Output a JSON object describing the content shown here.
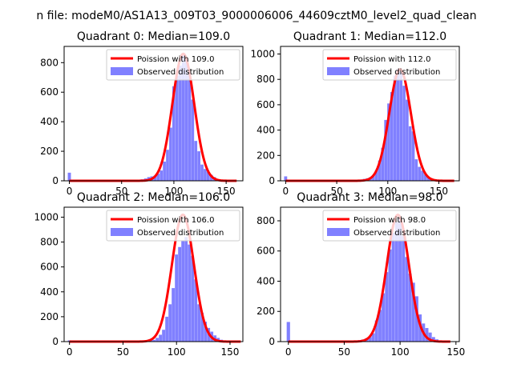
{
  "figure_title": "n file: modeM0/AS1A13_009T03_9000006006_44609cztM0_level2_quad_clean",
  "colors": {
    "fit": "#ff0000",
    "observed": "#8080ff",
    "axes": "#000000"
  },
  "chart_data": [
    {
      "type": "bar",
      "title": "Quadrant 0: Median=109.0",
      "median": 109.0,
      "xlim": [
        -5,
        166
      ],
      "ylim": [
        0,
        910
      ],
      "xticks": [
        0,
        50,
        100,
        150
      ],
      "yticks": [
        0,
        200,
        400,
        600,
        800
      ],
      "legend": [
        "Poission with 109.0",
        "Observed distribution"
      ],
      "legend_loc": "upper right",
      "outlier_bins": [
        {
          "x": 0,
          "y": 55
        }
      ],
      "observed": [
        [
          64,
          3
        ],
        [
          67,
          6
        ],
        [
          70,
          10
        ],
        [
          73,
          16
        ],
        [
          76,
          25
        ],
        [
          79,
          30
        ],
        [
          82,
          35
        ],
        [
          85,
          48
        ],
        [
          88,
          70
        ],
        [
          91,
          130
        ],
        [
          94,
          210
        ],
        [
          97,
          360
        ],
        [
          100,
          640
        ],
        [
          103,
          710
        ],
        [
          106,
          780
        ],
        [
          109,
          860
        ],
        [
          112,
          830
        ],
        [
          115,
          720
        ],
        [
          118,
          550
        ],
        [
          121,
          270
        ],
        [
          124,
          200
        ],
        [
          127,
          110
        ],
        [
          130,
          80
        ],
        [
          133,
          60
        ],
        [
          136,
          40
        ],
        [
          139,
          25
        ],
        [
          142,
          12
        ],
        [
          145,
          6
        ],
        [
          148,
          3
        ]
      ],
      "fit_sigma": 10.44,
      "fit_peak": 860,
      "fit_range": [
        0,
        160
      ]
    },
    {
      "type": "bar",
      "title": "Quadrant 1: Median=112.0",
      "median": 112.0,
      "xlim": [
        -5,
        170
      ],
      "ylim": [
        0,
        1060
      ],
      "xticks": [
        0,
        50,
        100,
        150
      ],
      "yticks": [
        0,
        200,
        400,
        600,
        800,
        1000
      ],
      "legend": [
        "Poission with 112.0",
        "Observed distribution"
      ],
      "legend_loc": "upper right",
      "outlier_bins": [
        {
          "x": 0,
          "y": 35
        }
      ],
      "observed": [
        [
          68,
          4
        ],
        [
          71,
          8
        ],
        [
          74,
          10
        ],
        [
          77,
          15
        ],
        [
          80,
          20
        ],
        [
          83,
          28
        ],
        [
          86,
          45
        ],
        [
          89,
          85
        ],
        [
          92,
          160
        ],
        [
          95,
          260
        ],
        [
          98,
          480
        ],
        [
          101,
          610
        ],
        [
          104,
          700
        ],
        [
          107,
          830
        ],
        [
          110,
          880
        ],
        [
          113,
          860
        ],
        [
          116,
          750
        ],
        [
          119,
          640
        ],
        [
          122,
          430
        ],
        [
          125,
          390
        ],
        [
          128,
          170
        ],
        [
          131,
          110
        ],
        [
          134,
          80
        ],
        [
          137,
          50
        ],
        [
          140,
          30
        ],
        [
          143,
          18
        ],
        [
          146,
          10
        ],
        [
          149,
          5
        ]
      ],
      "fit_sigma": 10.58,
      "fit_peak": 880,
      "fit_range": [
        0,
        165
      ]
    },
    {
      "type": "bar",
      "title": "Quadrant 2: Median=106.0",
      "median": 106.0,
      "xlim": [
        -5,
        162
      ],
      "ylim": [
        0,
        1080
      ],
      "xticks": [
        0,
        50,
        100,
        150
      ],
      "yticks": [
        0,
        200,
        400,
        600,
        800,
        1000
      ],
      "legend": [
        "Poission with 106.0",
        "Observed distribution"
      ],
      "legend_loc": "upper right",
      "outlier_bins": [
        {
          "x": 0,
          "y": 10
        }
      ],
      "observed": [
        [
          70,
          4
        ],
        [
          73,
          6
        ],
        [
          76,
          10
        ],
        [
          79,
          14
        ],
        [
          82,
          30
        ],
        [
          85,
          55
        ],
        [
          88,
          95
        ],
        [
          91,
          200
        ],
        [
          94,
          300
        ],
        [
          97,
          430
        ],
        [
          100,
          700
        ],
        [
          103,
          760
        ],
        [
          106,
          810
        ],
        [
          109,
          840
        ],
        [
          112,
          780
        ],
        [
          115,
          690
        ],
        [
          118,
          500
        ],
        [
          121,
          300
        ],
        [
          124,
          230
        ],
        [
          127,
          160
        ],
        [
          130,
          110
        ],
        [
          133,
          80
        ],
        [
          136,
          50
        ],
        [
          139,
          30
        ],
        [
          142,
          15
        ],
        [
          145,
          8
        ],
        [
          148,
          4
        ]
      ],
      "fit_sigma": 10.3,
      "fit_peak": 1020,
      "fit_range": [
        0,
        160
      ]
    },
    {
      "type": "bar",
      "title": "Quadrant 3: Median=98.0",
      "median": 98.0,
      "xlim": [
        -7,
        153
      ],
      "ylim": [
        0,
        890
      ],
      "xticks": [
        0,
        50,
        100,
        150
      ],
      "yticks": [
        0,
        200,
        400,
        600,
        800
      ],
      "legend": [
        "Poission with 98.0",
        "Observed distribution"
      ],
      "legend_loc": "upper right",
      "outlier_bins": [
        {
          "x": 0,
          "y": 130
        }
      ],
      "observed": [
        [
          55,
          3
        ],
        [
          58,
          5
        ],
        [
          61,
          8
        ],
        [
          64,
          10
        ],
        [
          67,
          14
        ],
        [
          70,
          22
        ],
        [
          73,
          30
        ],
        [
          76,
          55
        ],
        [
          79,
          140
        ],
        [
          82,
          210
        ],
        [
          85,
          320
        ],
        [
          88,
          460
        ],
        [
          91,
          610
        ],
        [
          94,
          720
        ],
        [
          97,
          790
        ],
        [
          100,
          820
        ],
        [
          103,
          700
        ],
        [
          106,
          560
        ],
        [
          109,
          450
        ],
        [
          112,
          390
        ],
        [
          115,
          300
        ],
        [
          118,
          180
        ],
        [
          121,
          120
        ],
        [
          124,
          90
        ],
        [
          127,
          60
        ],
        [
          130,
          30
        ],
        [
          133,
          15
        ],
        [
          136,
          6
        ]
      ],
      "fit_sigma": 9.9,
      "fit_peak": 840,
      "fit_range": [
        0,
        145
      ]
    }
  ]
}
